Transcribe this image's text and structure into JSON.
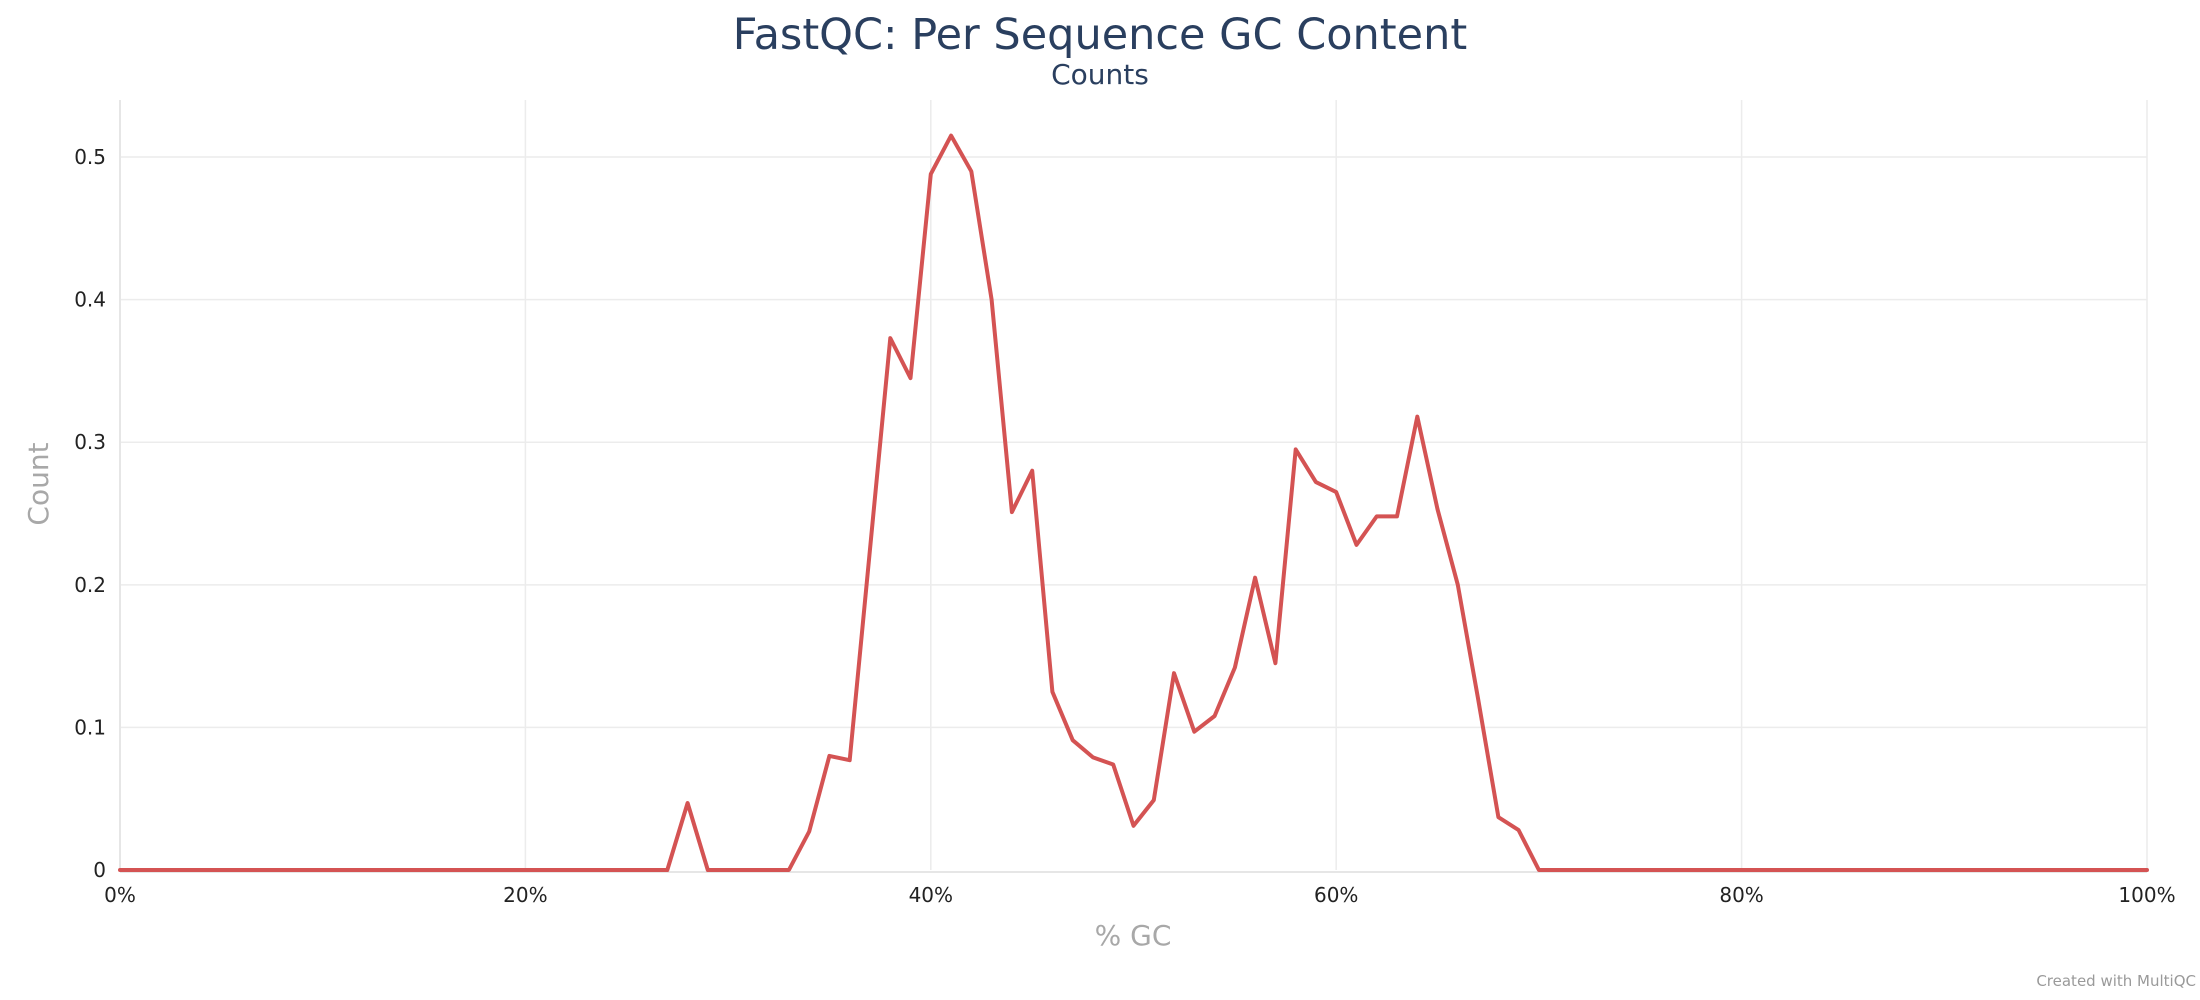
{
  "chart_data": {
    "type": "line",
    "title": "FastQC: Per Sequence GC Content",
    "subtitle": "Counts",
    "xlabel": "% GC",
    "ylabel": "Count",
    "xlim": [
      0,
      100
    ],
    "ylim": [
      0,
      0.54
    ],
    "x_ticks": [
      0,
      20,
      40,
      60,
      80,
      100
    ],
    "x_tick_labels": [
      "0%",
      "20%",
      "40%",
      "60%",
      "80%",
      "100%"
    ],
    "y_ticks": [
      0,
      0.1,
      0.2,
      0.3,
      0.4,
      0.5
    ],
    "y_tick_labels": [
      "0",
      "0.1",
      "0.2",
      "0.3",
      "0.4",
      "0.5"
    ],
    "grid": true,
    "legend": "none",
    "series_color": "#d45353",
    "series": [
      {
        "x": [
          0,
          27,
          28,
          29,
          33,
          34,
          35,
          36,
          37,
          38,
          39,
          40,
          41,
          42,
          43,
          44,
          45,
          46,
          47,
          48,
          49,
          50,
          51,
          52,
          53,
          54,
          55,
          56,
          57,
          58,
          59,
          60,
          61,
          62,
          63,
          64,
          65,
          66,
          67,
          68,
          69,
          70,
          100
        ],
        "y": [
          0,
          0,
          0.047,
          0,
          0,
          0.027,
          0.08,
          0.077,
          0.225,
          0.373,
          0.345,
          0.488,
          0.515,
          0.49,
          0.4,
          0.251,
          0.28,
          0.125,
          0.091,
          0.079,
          0.074,
          0.031,
          0.049,
          0.138,
          0.097,
          0.108,
          0.142,
          0.205,
          0.145,
          0.295,
          0.272,
          0.265,
          0.228,
          0.248,
          0.248,
          0.318,
          0.253,
          0.2,
          0.12,
          0.037,
          0.028,
          0,
          0
        ]
      }
    ]
  },
  "credit": "Created with MultiQC"
}
